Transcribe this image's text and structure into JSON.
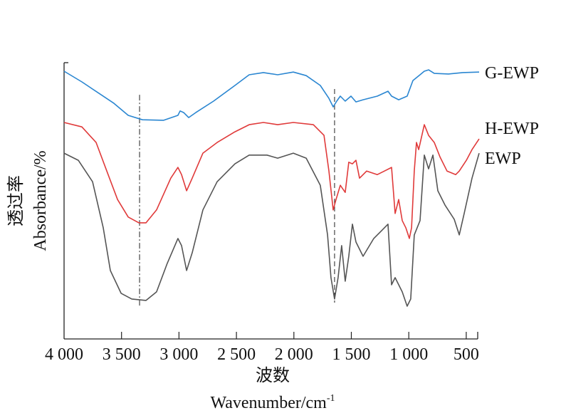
{
  "chart_data": {
    "type": "line",
    "title": "",
    "xlabel_cn": "波数",
    "xlabel": "Wavenumber/cm",
    "xlabel_sup": "-1",
    "ylabel_cn": "透过率",
    "ylabel": "Absorbance/%",
    "xlim": [
      4000,
      400
    ],
    "ylim": [
      0,
      100
    ],
    "x_ticks": [
      4000,
      3500,
      3000,
      2500,
      2000,
      1500,
      1000,
      500
    ],
    "x_tick_labels": [
      "4 000",
      "3 500",
      "3 000",
      "2 500",
      "2 000",
      "1 500",
      "1 000",
      "500"
    ],
    "grid": false,
    "reference_lines": [
      {
        "x": 3343,
        "style": "dash-dot",
        "y_range": [
          11.7,
          88.8
        ]
      },
      {
        "x": 1646,
        "style": "dashed",
        "y_range": [
          13.0,
          90.9
        ]
      }
    ],
    "series": [
      {
        "name": "G-EWP",
        "color": "#2a86d1",
        "points": [
          [
            4000,
            97.4
          ],
          [
            3845,
            93.5
          ],
          [
            3566,
            85.7
          ],
          [
            3442,
            81.3
          ],
          [
            3318,
            79.7
          ],
          [
            3133,
            79.5
          ],
          [
            3009,
            81.3
          ],
          [
            2990,
            82.9
          ],
          [
            2959,
            82.3
          ],
          [
            2916,
            80.5
          ],
          [
            2854,
            82.3
          ],
          [
            2699,
            86.5
          ],
          [
            2513,
            92.2
          ],
          [
            2389,
            96.1
          ],
          [
            2265,
            96.9
          ],
          [
            2141,
            96.1
          ],
          [
            2005,
            97.1
          ],
          [
            1893,
            95.8
          ],
          [
            1770,
            92.2
          ],
          [
            1695,
            87.5
          ],
          [
            1658,
            84.4
          ],
          [
            1627,
            86.5
          ],
          [
            1596,
            88.3
          ],
          [
            1553,
            86.5
          ],
          [
            1503,
            88.3
          ],
          [
            1460,
            86.2
          ],
          [
            1398,
            87.0
          ],
          [
            1274,
            88.3
          ],
          [
            1181,
            90.1
          ],
          [
            1150,
            88.3
          ],
          [
            1088,
            87.0
          ],
          [
            1014,
            88.3
          ],
          [
            964,
            94.0
          ],
          [
            902,
            96.1
          ],
          [
            865,
            97.4
          ],
          [
            828,
            97.9
          ],
          [
            778,
            96.6
          ],
          [
            654,
            96.4
          ],
          [
            530,
            96.9
          ],
          [
            388,
            97.1
          ]
        ]
      },
      {
        "name": "H-EWP",
        "color": "#e03a3a",
        "points": [
          [
            4000,
            78.7
          ],
          [
            3845,
            77.1
          ],
          [
            3721,
            71.4
          ],
          [
            3628,
            61.0
          ],
          [
            3535,
            50.6
          ],
          [
            3442,
            44.2
          ],
          [
            3349,
            42.1
          ],
          [
            3287,
            42.1
          ],
          [
            3195,
            46.8
          ],
          [
            3071,
            58.4
          ],
          [
            3009,
            62.3
          ],
          [
            2978,
            59.7
          ],
          [
            2934,
            53.8
          ],
          [
            2885,
            58.4
          ],
          [
            2792,
            67.5
          ],
          [
            2668,
            71.4
          ],
          [
            2513,
            75.3
          ],
          [
            2389,
            77.9
          ],
          [
            2265,
            78.7
          ],
          [
            2141,
            77.9
          ],
          [
            2005,
            78.7
          ],
          [
            1831,
            77.9
          ],
          [
            1738,
            74.0
          ],
          [
            1695,
            61.0
          ],
          [
            1658,
            46.8
          ],
          [
            1633,
            50.6
          ],
          [
            1596,
            55.8
          ],
          [
            1553,
            53.2
          ],
          [
            1522,
            64.2
          ],
          [
            1491,
            63.6
          ],
          [
            1460,
            64.9
          ],
          [
            1429,
            58.4
          ],
          [
            1367,
            61.0
          ],
          [
            1274,
            59.7
          ],
          [
            1212,
            61.0
          ],
          [
            1150,
            62.3
          ],
          [
            1119,
            45.5
          ],
          [
            1088,
            50.6
          ],
          [
            1057,
            42.9
          ],
          [
            1026,
            40.3
          ],
          [
            995,
            36.4
          ],
          [
            976,
            40.3
          ],
          [
            952,
            61.0
          ],
          [
            933,
            71.4
          ],
          [
            914,
            68.8
          ],
          [
            865,
            77.9
          ],
          [
            828,
            74.0
          ],
          [
            778,
            71.4
          ],
          [
            729,
            66.2
          ],
          [
            667,
            61.0
          ],
          [
            592,
            59.7
          ],
          [
            561,
            61.0
          ],
          [
            499,
            64.9
          ],
          [
            450,
            68.8
          ],
          [
            388,
            72.7
          ]
        ]
      },
      {
        "name": "EWP",
        "color": "#555555",
        "points": [
          [
            4000,
            67.5
          ],
          [
            3876,
            64.9
          ],
          [
            3752,
            57.1
          ],
          [
            3659,
            40.3
          ],
          [
            3597,
            24.7
          ],
          [
            3504,
            16.4
          ],
          [
            3411,
            14.3
          ],
          [
            3287,
            13.8
          ],
          [
            3195,
            16.9
          ],
          [
            3102,
            27.3
          ],
          [
            3009,
            36.4
          ],
          [
            2978,
            33.8
          ],
          [
            2934,
            24.7
          ],
          [
            2885,
            31.2
          ],
          [
            2792,
            46.8
          ],
          [
            2668,
            57.1
          ],
          [
            2513,
            63.6
          ],
          [
            2389,
            66.8
          ],
          [
            2234,
            66.8
          ],
          [
            2141,
            65.7
          ],
          [
            2005,
            67.5
          ],
          [
            1893,
            65.7
          ],
          [
            1770,
            55.8
          ],
          [
            1707,
            37.7
          ],
          [
            1677,
            22.1
          ],
          [
            1646,
            14.3
          ],
          [
            1615,
            22.1
          ],
          [
            1584,
            33.8
          ],
          [
            1553,
            20.8
          ],
          [
            1522,
            29.9
          ],
          [
            1491,
            41.6
          ],
          [
            1460,
            35.1
          ],
          [
            1398,
            29.9
          ],
          [
            1305,
            36.4
          ],
          [
            1243,
            39.0
          ],
          [
            1181,
            41.6
          ],
          [
            1150,
            19.5
          ],
          [
            1119,
            22.1
          ],
          [
            1057,
            16.9
          ],
          [
            1014,
            11.7
          ],
          [
            983,
            14.3
          ],
          [
            952,
            37.7
          ],
          [
            902,
            42.9
          ],
          [
            865,
            66.8
          ],
          [
            828,
            61.8
          ],
          [
            790,
            66.8
          ],
          [
            747,
            53.8
          ],
          [
            685,
            48.6
          ],
          [
            605,
            43.4
          ],
          [
            561,
            37.7
          ],
          [
            518,
            45.5
          ],
          [
            450,
            58.4
          ],
          [
            388,
            67.5
          ]
        ]
      }
    ]
  }
}
